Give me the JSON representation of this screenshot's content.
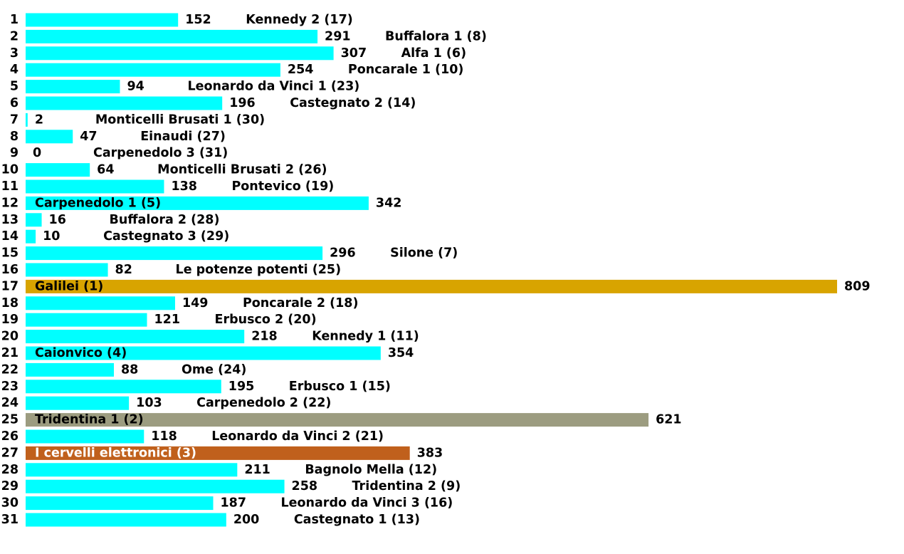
{
  "chart_data": {
    "type": "bar",
    "categories": [
      "1",
      "2",
      "3",
      "4",
      "5",
      "6",
      "7",
      "8",
      "9",
      "10",
      "11",
      "12",
      "13",
      "14",
      "15",
      "16",
      "17",
      "18",
      "19",
      "20",
      "21",
      "22",
      "23",
      "24",
      "25",
      "26",
      "27",
      "28",
      "29",
      "30",
      "31"
    ],
    "values": [
      152,
      291,
      307,
      254,
      94,
      196,
      2,
      47,
      0,
      64,
      138,
      342,
      16,
      10,
      296,
      82,
      809,
      149,
      121,
      218,
      354,
      88,
      195,
      103,
      621,
      118,
      383,
      211,
      258,
      187,
      200
    ],
    "labels": [
      "Kennedy 2 (17)",
      "Buffalora 1 (8)",
      "Alfa 1 (6)",
      "Poncarale 1 (10)",
      "Leonardo da Vinci 1 (23)",
      "Castegnato 2 (14)",
      "Monticelli Brusati 1 (30)",
      "Einaudi (27)",
      "Carpenedolo 3 (31)",
      "Monticelli Brusati 2 (26)",
      "Pontevico (19)",
      "Carpenedolo 1 (5)",
      "Buffalora 2 (28)",
      "Castegnato 3 (29)",
      "Silone (7)",
      "Le potenze potenti (25)",
      "Galilei (1)",
      "Poncarale 2 (18)",
      "Erbusco 2 (20)",
      "Kennedy 1 (11)",
      "Caionvico (4)",
      "Ome (24)",
      "Erbusco 1 (15)",
      "Carpenedolo 2 (22)",
      "Tridentina 1 (2)",
      "Leonardo da Vinci 2 (21)",
      "I cervelli elettronici (3)",
      "Bagnolo Mella (12)",
      "Tridentina 2 (9)",
      "Leonardo da Vinci 3 (16)",
      "Castegnato 1 (13)"
    ],
    "colors": [
      "#00ffff",
      "#00ffff",
      "#00ffff",
      "#00ffff",
      "#00ffff",
      "#00ffff",
      "#00ffff",
      "#00ffff",
      "#00ffff",
      "#00ffff",
      "#00ffff",
      "#00ffff",
      "#00ffff",
      "#00ffff",
      "#00ffff",
      "#00ffff",
      "#d8a400",
      "#00ffff",
      "#00ffff",
      "#00ffff",
      "#00ffff",
      "#00ffff",
      "#00ffff",
      "#00ffff",
      "#9c9c80",
      "#00ffff",
      "#c0601c",
      "#00ffff",
      "#00ffff",
      "#00ffff",
      "#00ffff"
    ]
  }
}
